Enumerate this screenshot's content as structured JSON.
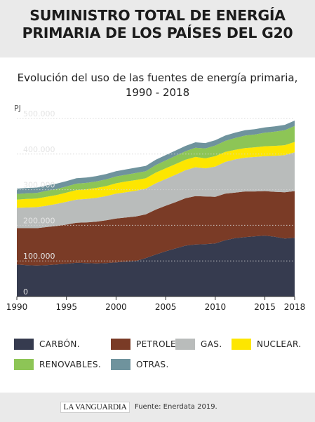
{
  "header": {
    "title_line1": "SUMINISTRO TOTAL DE ENERGÍA",
    "title_line2": "PRIMARIA DE LOS PAÍSES DEL G20"
  },
  "subtitle": {
    "line1": "Evolución del uso de las fuentes de energía primaria,",
    "line2": "1990 - 2018"
  },
  "footer": {
    "brand": "LA VANGUARDIA",
    "source": "Fuente: Enerdata 2019."
  },
  "chart_data": {
    "type": "area",
    "stacked": true,
    "ylabel": "PJ",
    "ylim": [
      0,
      500000
    ],
    "xlim": [
      1990,
      2018
    ],
    "y_ticks": [
      0,
      100000,
      200000,
      300000,
      400000,
      500000
    ],
    "y_tick_labels": [
      "0",
      "100.000",
      "200.000",
      "300.000",
      "400.000",
      "500.000"
    ],
    "x_ticks": [
      1990,
      1995,
      2000,
      2005,
      2010,
      2015,
      2018
    ],
    "x_tick_labels": [
      "1990",
      "1995",
      "2000",
      "2005",
      "2010",
      "2015",
      "2018"
    ],
    "grid": "horizontal dotted",
    "legend_position": "bottom",
    "x": [
      1990,
      1991,
      1992,
      1993,
      1994,
      1995,
      1996,
      1997,
      1998,
      1999,
      2000,
      2001,
      2002,
      2003,
      2004,
      2005,
      2006,
      2007,
      2008,
      2009,
      2010,
      2011,
      2012,
      2013,
      2014,
      2015,
      2016,
      2017,
      2018
    ],
    "series": [
      {
        "name": "CARBÓN.",
        "color": "#363b4f",
        "values": [
          90000,
          88000,
          87000,
          88000,
          90000,
          92000,
          95000,
          94000,
          93000,
          94000,
          96000,
          98000,
          100000,
          108000,
          118000,
          127000,
          135000,
          143000,
          146000,
          147000,
          149000,
          158000,
          164000,
          167000,
          169000,
          171000,
          168000,
          163000,
          165000
        ]
      },
      {
        "name": "PETROLEO.",
        "color": "#7a3b26",
        "values": [
          102000,
          104000,
          105000,
          107000,
          108000,
          110000,
          112000,
          114000,
          117000,
          120000,
          123000,
          124000,
          125000,
          123000,
          126000,
          128000,
          130000,
          133000,
          136000,
          134000,
          131000,
          131000,
          128000,
          128000,
          126000,
          125000,
          126000,
          130000,
          131000
        ]
      },
      {
        "name": "GAS.",
        "color": "#b9bcbb",
        "values": [
          57000,
          58000,
          59000,
          60000,
          62000,
          64000,
          65000,
          66000,
          67000,
          68000,
          70000,
          71000,
          72000,
          72000,
          74000,
          75000,
          77000,
          79000,
          81000,
          79000,
          85000,
          89000,
          93000,
          95000,
          97000,
          98000,
          101000,
          104000,
          109000
        ]
      },
      {
        "name": "NUCLEAR.",
        "color": "#fde600",
        "values": [
          23000,
          24000,
          24000,
          25000,
          25000,
          26000,
          27000,
          27000,
          28000,
          28000,
          29000,
          30000,
          30000,
          29000,
          30000,
          30000,
          30000,
          29000,
          29000,
          28000,
          29000,
          28000,
          27000,
          27000,
          27000,
          28000,
          28000,
          28000,
          29000
        ]
      },
      {
        "name": "RENOVABLES.",
        "color": "#8dc556",
        "values": [
          16000,
          16000,
          16000,
          17000,
          17000,
          17000,
          18000,
          18000,
          18000,
          19000,
          19000,
          19000,
          20000,
          20000,
          21000,
          22000,
          23000,
          24000,
          26000,
          28000,
          30000,
          31000,
          33000,
          35000,
          36000,
          38000,
          40000,
          42000,
          45000
        ]
      },
      {
        "name": "OTRAS.",
        "color": "#6f939d",
        "values": [
          15000,
          15000,
          15000,
          15000,
          15000,
          15000,
          15000,
          15000,
          15000,
          15000,
          15000,
          15000,
          15000,
          15000,
          15000,
          15000,
          15000,
          15000,
          15000,
          15000,
          15000,
          15000,
          15000,
          15000,
          15000,
          15000,
          15000,
          15000,
          15000
        ]
      }
    ]
  }
}
